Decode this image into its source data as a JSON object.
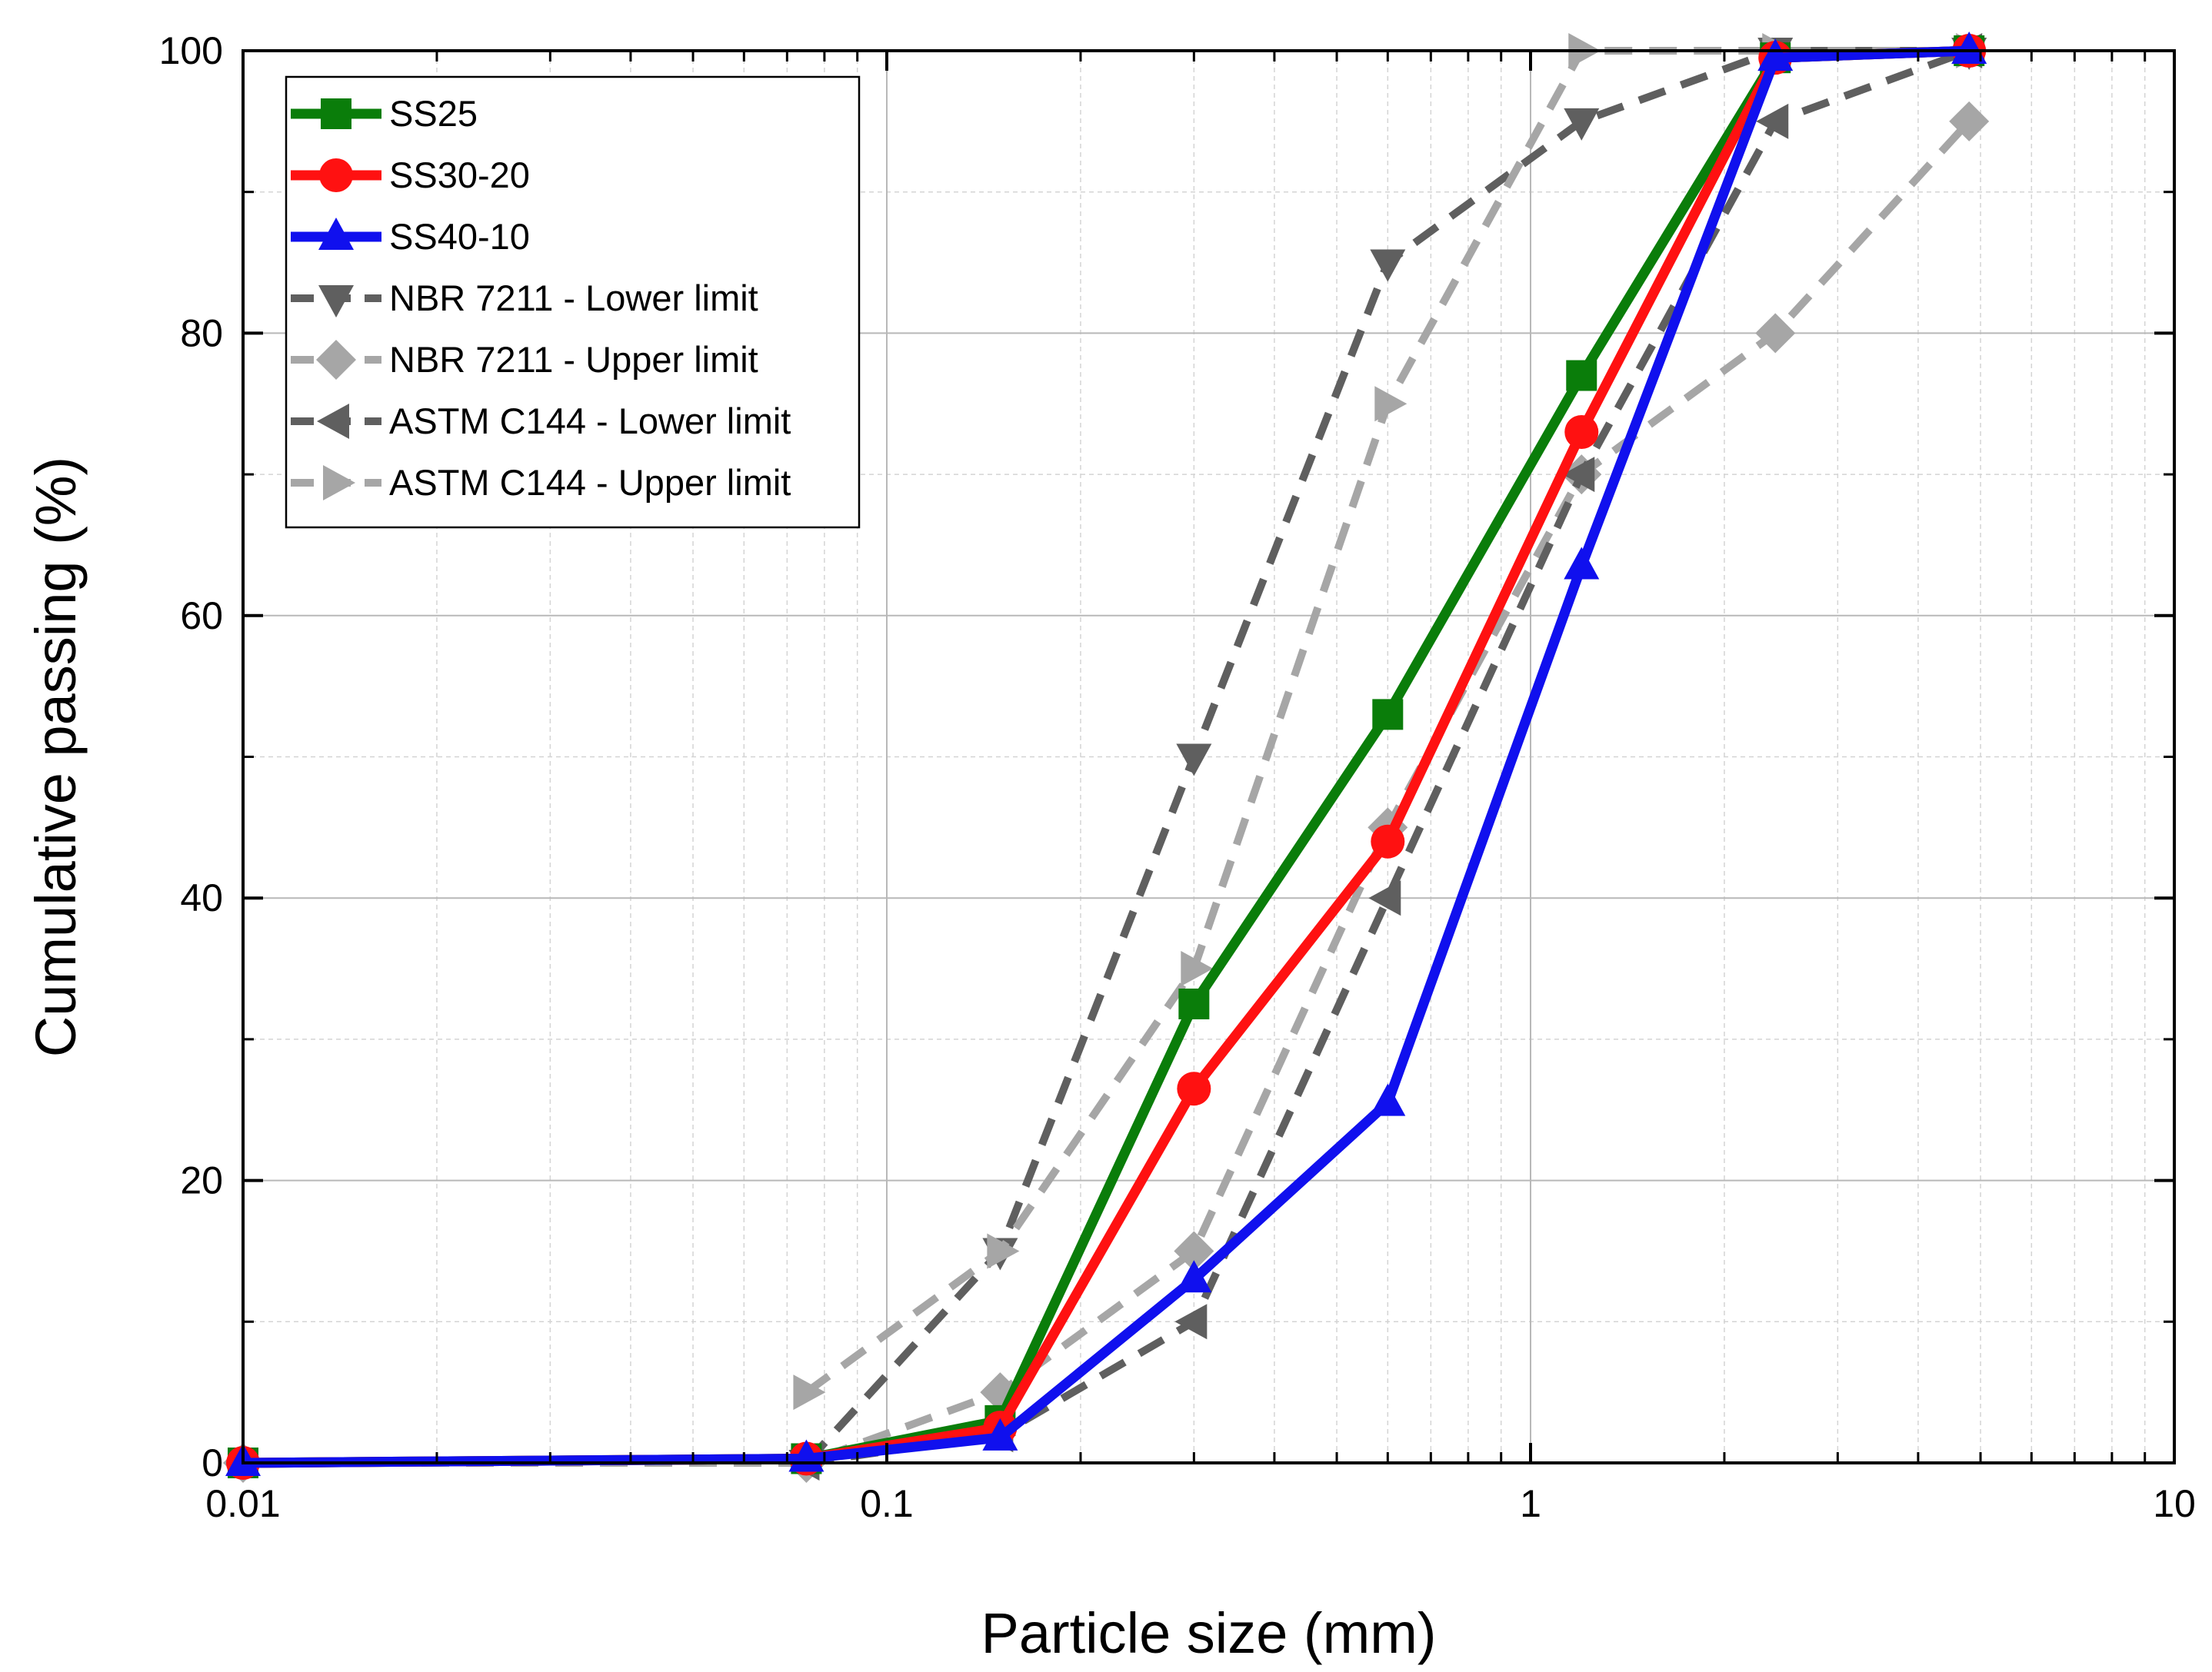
{
  "chart_data": {
    "type": "line",
    "xscale": "log",
    "xlim": [
      0.01,
      10
    ],
    "ylim": [
      0,
      100
    ],
    "xlabel": "Particle size (mm)",
    "ylabel": "Cumulative passing (%)",
    "xticks": [
      {
        "value": 0.01,
        "label": "0.01"
      },
      {
        "value": 0.1,
        "label": "0.1"
      },
      {
        "value": 1,
        "label": "1"
      },
      {
        "value": 10,
        "label": "10"
      }
    ],
    "yticks": [
      {
        "value": 0,
        "label": "0"
      },
      {
        "value": 20,
        "label": "20"
      },
      {
        "value": 40,
        "label": "40"
      },
      {
        "value": 60,
        "label": "60"
      },
      {
        "value": 80,
        "label": "80"
      },
      {
        "value": 100,
        "label": "100"
      }
    ],
    "grid": true,
    "legend_position": "top-left",
    "series": [
      {
        "name": "SS25",
        "color": "#0a7d0a",
        "dash": "solid",
        "marker": "square",
        "x": [
          0.01,
          0.075,
          0.15,
          0.3,
          0.6,
          1.2,
          2.4,
          4.8
        ],
        "y": [
          0,
          0.3,
          3,
          32.5,
          53,
          77,
          99.5,
          100
        ]
      },
      {
        "name": "SS30-20",
        "color": "#ff1111",
        "dash": "solid",
        "marker": "circle",
        "x": [
          0.01,
          0.075,
          0.15,
          0.3,
          0.6,
          1.2,
          2.4,
          4.8
        ],
        "y": [
          0,
          0.3,
          2.5,
          26.5,
          44,
          73,
          99.5,
          100
        ]
      },
      {
        "name": "SS40-10",
        "color": "#1010ee",
        "dash": "solid",
        "marker": "triangle-up",
        "x": [
          0.01,
          0.075,
          0.15,
          0.3,
          0.6,
          1.2,
          2.4,
          4.8
        ],
        "y": [
          0,
          0.3,
          1.8,
          13,
          25.5,
          63.5,
          99.5,
          100
        ]
      },
      {
        "name": "NBR 7211 - Lower limit",
        "color": "#5f5f5f",
        "dash": "dashed",
        "marker": "triangle-down",
        "x": [
          0.075,
          0.15,
          0.3,
          0.6,
          1.2,
          2.4,
          4.8
        ],
        "y": [
          0,
          15,
          50,
          85,
          95,
          100,
          100
        ]
      },
      {
        "name": "NBR 7211 - Upper limit",
        "color": "#a6a6a6",
        "dash": "dashed",
        "marker": "diamond",
        "x": [
          0.01,
          0.075,
          0.15,
          0.3,
          0.6,
          1.2,
          2.4,
          4.8
        ],
        "y": [
          0,
          0,
          5,
          15,
          45,
          70,
          80,
          95
        ]
      },
      {
        "name": "ASTM C144 - Lower limit",
        "color": "#5f5f5f",
        "dash": "dashed",
        "marker": "triangle-left",
        "x": [
          0.075,
          0.15,
          0.3,
          0.6,
          1.2,
          2.4,
          4.8
        ],
        "y": [
          0,
          2,
          10,
          40,
          70,
          95,
          100
        ]
      },
      {
        "name": "ASTM C144 - Upper limit",
        "color": "#a6a6a6",
        "dash": "dashed",
        "marker": "triangle-right",
        "x": [
          0.075,
          0.15,
          0.3,
          0.6,
          1.2,
          2.4,
          4.8
        ],
        "y": [
          5,
          15,
          35,
          75,
          100,
          100,
          100
        ]
      }
    ]
  }
}
